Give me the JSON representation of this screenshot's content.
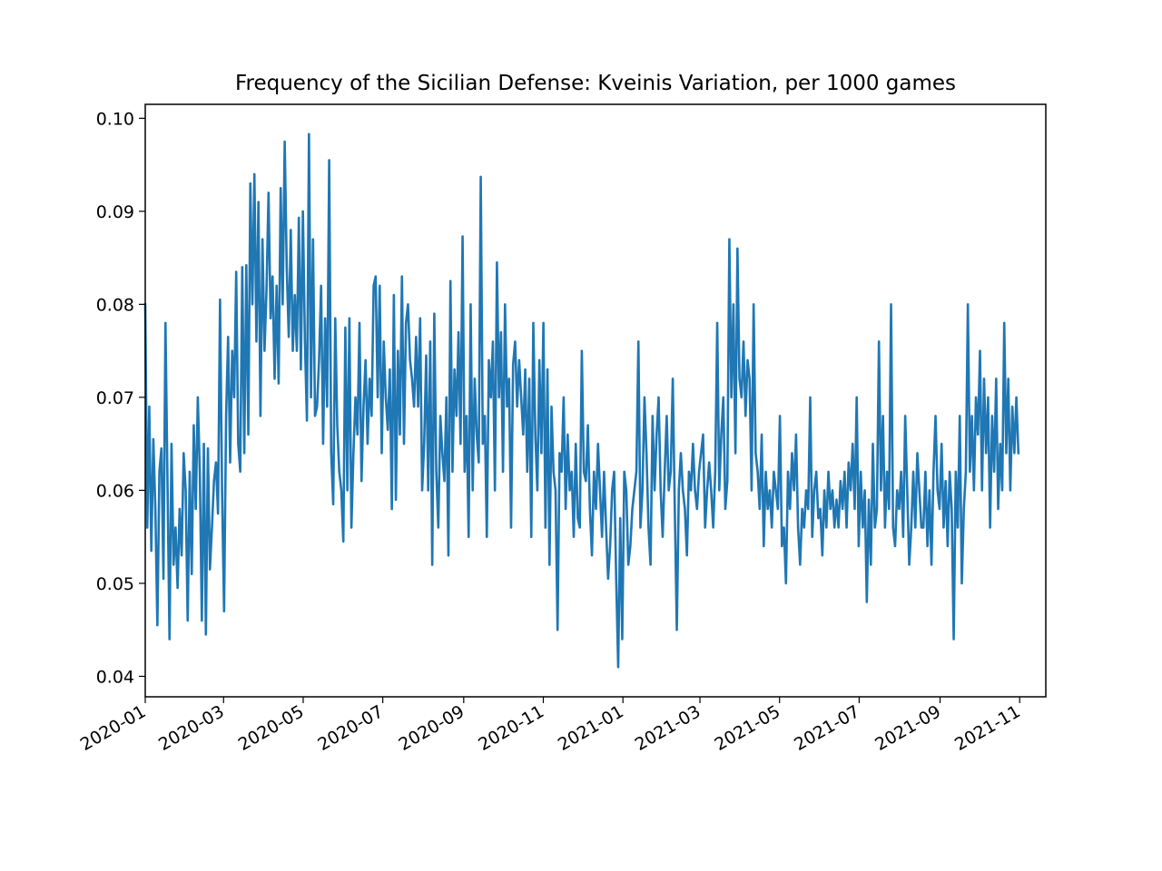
{
  "chart_data": {
    "type": "line",
    "title": "Frequency of the Sicilian Defense: Kveinis Variation, per 1000 games",
    "xlabel": "",
    "ylabel": "",
    "x_range": [
      "2020-01-01",
      "2021-11-21"
    ],
    "ylim": [
      0.0378,
      0.1015
    ],
    "grid": false,
    "line_color": "#1f77b4",
    "x_ticks": [
      "2020-01",
      "2020-03",
      "2020-05",
      "2020-07",
      "2020-09",
      "2020-11",
      "2021-01",
      "2021-03",
      "2021-05",
      "2021-07",
      "2021-09",
      "2021-11"
    ],
    "y_ticks": [
      "0.04",
      "0.05",
      "0.06",
      "0.07",
      "0.08",
      "0.09",
      "0.10"
    ],
    "series": [
      {
        "start_date": "2020-01-01",
        "end_date": "2021-10-31",
        "values": [
          0.08,
          0.056,
          0.069,
          0.0535,
          0.0655,
          0.058,
          0.0455,
          0.062,
          0.0645,
          0.0505,
          0.078,
          0.061,
          0.044,
          0.065,
          0.052,
          0.056,
          0.0495,
          0.058,
          0.053,
          0.064,
          0.06,
          0.046,
          0.062,
          0.051,
          0.067,
          0.058,
          0.07,
          0.062,
          0.046,
          0.065,
          0.0445,
          0.0645,
          0.0515,
          0.056,
          0.061,
          0.063,
          0.0575,
          0.0805,
          0.06,
          0.047,
          0.068,
          0.0765,
          0.063,
          0.075,
          0.07,
          0.0835,
          0.065,
          0.062,
          0.084,
          0.064,
          0.0842,
          0.066,
          0.093,
          0.08,
          0.094,
          0.076,
          0.091,
          0.068,
          0.087,
          0.075,
          0.0815,
          0.092,
          0.0785,
          0.083,
          0.072,
          0.082,
          0.0715,
          0.0925,
          0.08,
          0.0975,
          0.084,
          0.0765,
          0.088,
          0.075,
          0.081,
          0.075,
          0.0893,
          0.073,
          0.09,
          0.076,
          0.0675,
          0.0983,
          0.07,
          0.087,
          0.068,
          0.069,
          0.074,
          0.082,
          0.065,
          0.0785,
          0.069,
          0.0955,
          0.064,
          0.0585,
          0.0785,
          0.067,
          0.062,
          0.06,
          0.0545,
          0.0775,
          0.06,
          0.0785,
          0.056,
          0.064,
          0.07,
          0.066,
          0.078,
          0.061,
          0.069,
          0.074,
          0.065,
          0.072,
          0.068,
          0.082,
          0.083,
          0.07,
          0.082,
          0.064,
          0.076,
          0.07,
          0.0665,
          0.073,
          0.058,
          0.081,
          0.059,
          0.075,
          0.066,
          0.083,
          0.065,
          0.078,
          0.08,
          0.074,
          0.072,
          0.069,
          0.0765,
          0.069,
          0.0785,
          0.06,
          0.065,
          0.0745,
          0.06,
          0.076,
          0.052,
          0.079,
          0.062,
          0.056,
          0.068,
          0.064,
          0.061,
          0.07,
          0.053,
          0.0825,
          0.062,
          0.073,
          0.068,
          0.077,
          0.065,
          0.0873,
          0.062,
          0.068,
          0.055,
          0.08,
          0.06,
          0.072,
          0.066,
          0.063,
          0.0937,
          0.065,
          0.068,
          0.055,
          0.074,
          0.07,
          0.076,
          0.06,
          0.0845,
          0.07,
          0.077,
          0.062,
          0.08,
          0.069,
          0.072,
          0.056,
          0.0735,
          0.076,
          0.069,
          0.074,
          0.07,
          0.066,
          0.073,
          0.062,
          0.072,
          0.055,
          0.078,
          0.066,
          0.06,
          0.074,
          0.064,
          0.078,
          0.056,
          0.073,
          0.052,
          0.069,
          0.062,
          0.06,
          0.045,
          0.064,
          0.062,
          0.07,
          0.058,
          0.066,
          0.06,
          0.062,
          0.055,
          0.065,
          0.057,
          0.056,
          0.075,
          0.062,
          0.061,
          0.067,
          0.058,
          0.053,
          0.062,
          0.058,
          0.065,
          0.06,
          0.055,
          0.062,
          0.056,
          0.0505,
          0.054,
          0.06,
          0.062,
          0.0505,
          0.041,
          0.057,
          0.044,
          0.062,
          0.06,
          0.052,
          0.054,
          0.058,
          0.06,
          0.062,
          0.076,
          0.056,
          0.06,
          0.07,
          0.064,
          0.056,
          0.052,
          0.068,
          0.06,
          0.066,
          0.07,
          0.06,
          0.055,
          0.062,
          0.068,
          0.06,
          0.062,
          0.072,
          0.058,
          0.045,
          0.06,
          0.064,
          0.06,
          0.058,
          0.053,
          0.062,
          0.06,
          0.065,
          0.06,
          0.058,
          0.062,
          0.064,
          0.066,
          0.056,
          0.06,
          0.063,
          0.06,
          0.056,
          0.062,
          0.078,
          0.06,
          0.066,
          0.07,
          0.058,
          0.061,
          0.087,
          0.07,
          0.08,
          0.064,
          0.086,
          0.072,
          0.07,
          0.076,
          0.068,
          0.074,
          0.072,
          0.06,
          0.08,
          0.064,
          0.062,
          0.058,
          0.066,
          0.054,
          0.062,
          0.058,
          0.06,
          0.056,
          0.062,
          0.06,
          0.058,
          0.068,
          0.054,
          0.056,
          0.05,
          0.062,
          0.058,
          0.064,
          0.06,
          0.066,
          0.056,
          0.052,
          0.058,
          0.056,
          0.06,
          0.058,
          0.07,
          0.055,
          0.06,
          0.062,
          0.057,
          0.058,
          0.053,
          0.06,
          0.056,
          0.062,
          0.058,
          0.06,
          0.056,
          0.059,
          0.056,
          0.061,
          0.058,
          0.062,
          0.056,
          0.063,
          0.06,
          0.065,
          0.058,
          0.07,
          0.054,
          0.062,
          0.056,
          0.06,
          0.048,
          0.059,
          0.052,
          0.065,
          0.056,
          0.058,
          0.076,
          0.06,
          0.068,
          0.056,
          0.062,
          0.058,
          0.08,
          0.056,
          0.054,
          0.06,
          0.058,
          0.062,
          0.055,
          0.068,
          0.06,
          0.052,
          0.056,
          0.062,
          0.056,
          0.064,
          0.06,
          0.056,
          0.056,
          0.062,
          0.054,
          0.06,
          0.052,
          0.062,
          0.068,
          0.06,
          0.058,
          0.065,
          0.056,
          0.061,
          0.054,
          0.062,
          0.058,
          0.044,
          0.062,
          0.056,
          0.068,
          0.05,
          0.058,
          0.062,
          0.08,
          0.062,
          0.068,
          0.06,
          0.07,
          0.066,
          0.075,
          0.06,
          0.072,
          0.064,
          0.07,
          0.056,
          0.068,
          0.062,
          0.072,
          0.058,
          0.065,
          0.06,
          0.078,
          0.064,
          0.072,
          0.06,
          0.069,
          0.064,
          0.07,
          0.064
        ]
      }
    ]
  }
}
